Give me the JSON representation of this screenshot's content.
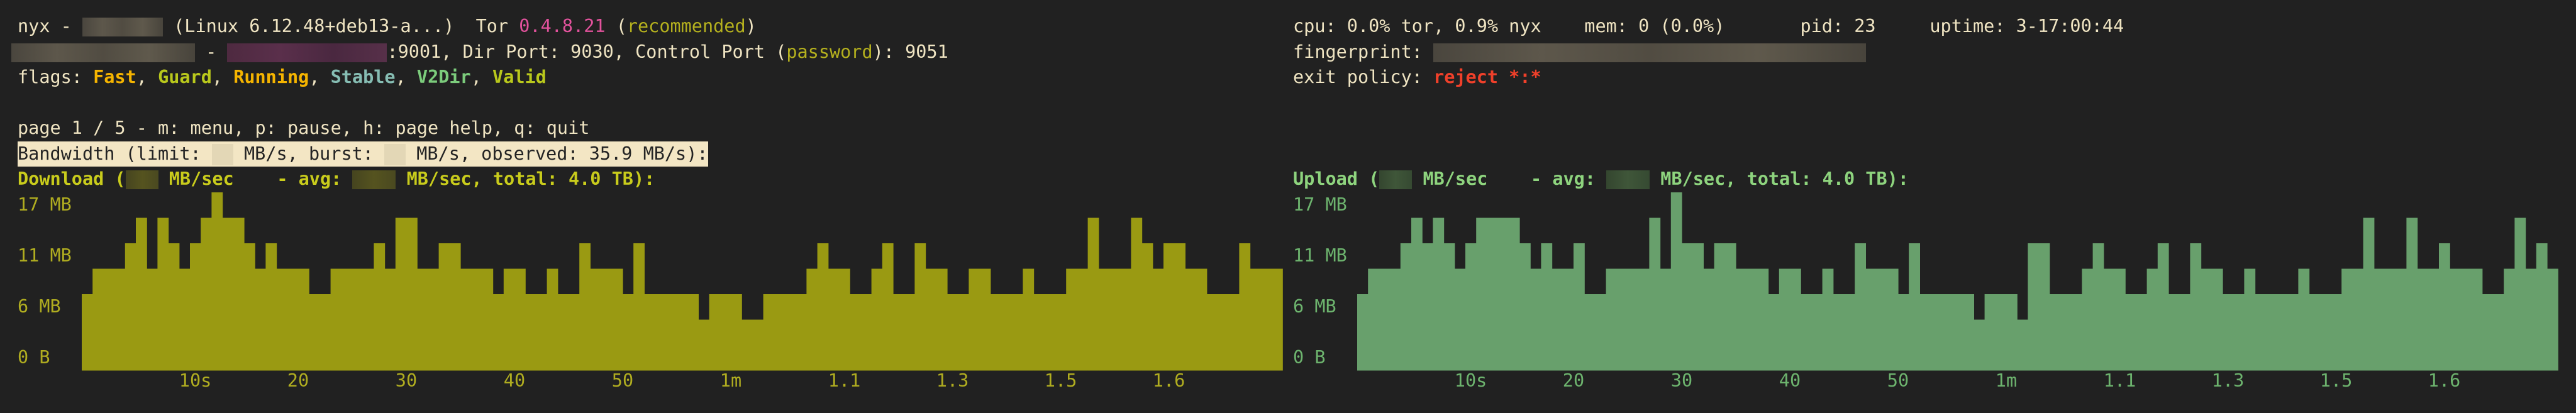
{
  "header": {
    "app": "nyx",
    "separator": " - ",
    "system": "(Linux 6.12.48+deb13-a...)",
    "tor_label": "Tor",
    "tor_version": "0.4.8.21",
    "version_status": "recommended",
    "address_dash": " - ",
    "ports": ":9001, Dir Port: 9030, Control Port (",
    "control_auth": "password",
    "ports_end": "): 9051",
    "flags_label": "flags: ",
    "flags": [
      {
        "name": "Fast",
        "color": "#f5b400"
      },
      {
        "name": "Guard",
        "color": "#b9c81c"
      },
      {
        "name": "Running",
        "color": "#f5b400"
      },
      {
        "name": "Stable",
        "color": "#86bdb3"
      },
      {
        "name": "V2Dir",
        "color": "#7ccc7c"
      },
      {
        "name": "Valid",
        "color": "#b9c81c"
      }
    ],
    "cpu": "cpu: 0.0% tor, 0.9% nyx",
    "mem": "mem: 0 (0.0%)",
    "pid": "pid: 23",
    "uptime": "uptime: 3-17:00:44",
    "fingerprint_label": "fingerprint: ",
    "exit_policy_label": "exit policy: ",
    "exit_policy": "reject *:*"
  },
  "nav": {
    "hint": "page 1 / 5 - m: menu, p: pause, h: page help, q: quit"
  },
  "bandwidth": {
    "title_a": "Bandwidth (limit: ",
    "title_b": " MB/s, burst: ",
    "title_c": " MB/s, observed: 35.9 MB/s):"
  },
  "download": {
    "label_a": "Download (",
    "label_b": " MB/sec    - avg: ",
    "label_c": " MB/sec, total: 4.0 TB):"
  },
  "upload": {
    "label_a": "Upload (",
    "label_b": " MB/sec    - avg: ",
    "label_c": " MB/sec, total: 4.0 TB):"
  },
  "chart_data": [
    {
      "type": "bar",
      "series_label": "Download",
      "color": "#9a9a12",
      "y_ticks": [
        "17 MB",
        "11 MB",
        "6 MB",
        "0 B"
      ],
      "ylim": [
        0,
        17
      ],
      "x_ticks": [
        "10s",
        "20",
        "30",
        "40",
        "50",
        "1m",
        "1.1",
        "1.3",
        "1.5",
        "1.6"
      ],
      "values": [
        7.3,
        9.7,
        9.7,
        9.7,
        12.1,
        14.6,
        9.7,
        14.6,
        12.1,
        9.7,
        12.1,
        14.6,
        17.0,
        14.6,
        14.6,
        12.1,
        9.7,
        12.1,
        9.7,
        9.7,
        9.7,
        7.3,
        7.3,
        9.7,
        9.7,
        9.7,
        9.7,
        12.1,
        9.7,
        14.6,
        14.6,
        9.7,
        9.7,
        12.1,
        12.1,
        9.7,
        9.7,
        9.7,
        7.3,
        9.7,
        9.7,
        7.3,
        7.3,
        9.7,
        7.3,
        7.3,
        12.1,
        9.7,
        9.7,
        9.7,
        7.3,
        12.1,
        7.3,
        7.3,
        7.3,
        7.3,
        7.3,
        4.9,
        7.3,
        7.3,
        7.3,
        4.9,
        4.9,
        7.3,
        7.3,
        7.3,
        7.3,
        9.7,
        12.1,
        9.7,
        9.7,
        7.3,
        7.3,
        9.7,
        12.1,
        7.3,
        7.3,
        12.1,
        9.7,
        9.7,
        7.3,
        7.3,
        9.7,
        9.7,
        7.3,
        7.3,
        7.3,
        9.7,
        7.3,
        7.3,
        7.3,
        9.7,
        9.7,
        14.6,
        9.7,
        9.7,
        9.7,
        14.6,
        12.1,
        9.7,
        12.1,
        12.1,
        9.7,
        9.7,
        7.3,
        7.3,
        7.3,
        12.1,
        9.7,
        9.7,
        9.7
      ]
    },
    {
      "type": "bar",
      "series_label": "Upload",
      "color": "#68a06c",
      "y_ticks": [
        "17 MB",
        "11 MB",
        "6 MB",
        "0 B"
      ],
      "ylim": [
        0,
        17
      ],
      "x_ticks": [
        "10s",
        "20",
        "30",
        "40",
        "50",
        "1m",
        "1.1",
        "1.3",
        "1.5",
        "1.6"
      ],
      "values": [
        7.3,
        9.7,
        9.7,
        9.7,
        12.1,
        14.6,
        12.1,
        14.6,
        12.1,
        9.7,
        12.1,
        14.6,
        14.6,
        14.6,
        14.6,
        12.1,
        9.7,
        12.1,
        9.7,
        9.7,
        12.1,
        7.3,
        7.3,
        9.7,
        9.7,
        9.7,
        9.7,
        14.6,
        9.7,
        17.0,
        12.1,
        12.1,
        9.7,
        12.1,
        12.1,
        9.7,
        9.7,
        9.7,
        7.3,
        9.7,
        9.7,
        7.3,
        7.3,
        9.7,
        7.3,
        7.3,
        12.1,
        9.7,
        9.7,
        9.7,
        7.3,
        12.1,
        7.3,
        7.3,
        7.3,
        7.3,
        7.3,
        4.9,
        7.3,
        7.3,
        7.3,
        4.9,
        12.1,
        12.1,
        7.3,
        7.3,
        7.3,
        9.7,
        12.1,
        9.7,
        9.7,
        7.3,
        7.3,
        9.7,
        12.1,
        7.3,
        7.3,
        12.1,
        9.7,
        9.7,
        7.3,
        7.3,
        9.7,
        7.3,
        7.3,
        7.3,
        7.3,
        9.7,
        7.3,
        7.3,
        7.3,
        9.7,
        9.7,
        14.6,
        9.7,
        9.7,
        9.7,
        14.6,
        9.7,
        9.7,
        12.1,
        9.7,
        9.7,
        9.7,
        7.3,
        7.3,
        9.7,
        14.6,
        9.7,
        12.1,
        9.7
      ]
    }
  ]
}
